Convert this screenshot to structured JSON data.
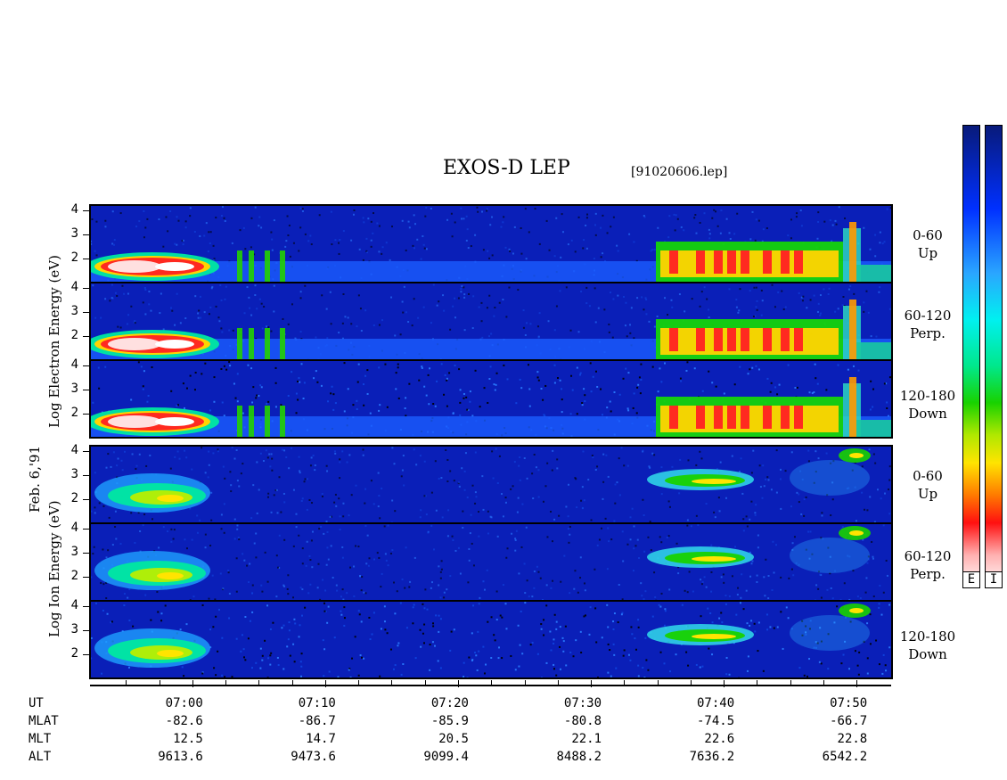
{
  "title": "EXOS-D LEP",
  "file": "[91020606.lep]",
  "date_label": "Feb. 6,'91",
  "electron_axis_label": "Log  Electron  Energy (eV)",
  "ion_axis_label": "Log  Ion  Energy (eV)",
  "colorbar": {
    "labels": [
      "E",
      "I"
    ]
  },
  "colors": {
    "background_flux": "#0a1fb8",
    "frame": "#000000"
  },
  "chart_data": {
    "type": "heatmap",
    "title": "EXOS-D LEP",
    "panels": [
      {
        "species": "Electron",
        "pitch_angle": "0-60",
        "direction": "Up",
        "ylim": [
          1,
          4.2
        ],
        "yticks": [
          "4",
          "3",
          "2"
        ]
      },
      {
        "species": "Electron",
        "pitch_angle": "60-120",
        "direction": "Perp.",
        "ylim": [
          1,
          4.2
        ],
        "yticks": [
          "4",
          "3",
          "2"
        ]
      },
      {
        "species": "Electron",
        "pitch_angle": "120-180",
        "direction": "Down",
        "ylim": [
          1,
          4.2
        ],
        "yticks": [
          "4",
          "3",
          "2"
        ]
      },
      {
        "species": "Ion",
        "pitch_angle": "0-60",
        "direction": "Up",
        "ylim": [
          1,
          4.2
        ],
        "yticks": [
          "4",
          "3",
          "2"
        ]
      },
      {
        "species": "Ion",
        "pitch_angle": "60-120",
        "direction": "Perp.",
        "ylim": [
          1,
          4.2
        ],
        "yticks": [
          "4",
          "3",
          "2"
        ]
      },
      {
        "species": "Ion",
        "pitch_angle": "120-180",
        "direction": "Down",
        "ylim": [
          1,
          4.2
        ],
        "yticks": [
          "4",
          "3",
          "2"
        ]
      }
    ],
    "x_minutes_range": [
      56.7,
      52.6
    ],
    "x_axis_rows": {
      "labels": [
        "UT",
        "MLAT",
        "MLT",
        "ALT"
      ],
      "UT": [
        "07:00",
        "07:10",
        "07:20",
        "07:30",
        "07:40",
        "07:50"
      ],
      "MLAT": [
        "-82.6",
        "-86.7",
        "-85.9",
        "-80.8",
        "-74.5",
        "-66.7"
      ],
      "MLT": [
        "12.5",
        "14.7",
        "20.5",
        "22.1",
        "22.6",
        "22.8"
      ],
      "ALT": [
        "9613.6",
        "9473.6",
        "9099.4",
        "8488.2",
        "7636.2",
        "6542.2"
      ]
    }
  }
}
